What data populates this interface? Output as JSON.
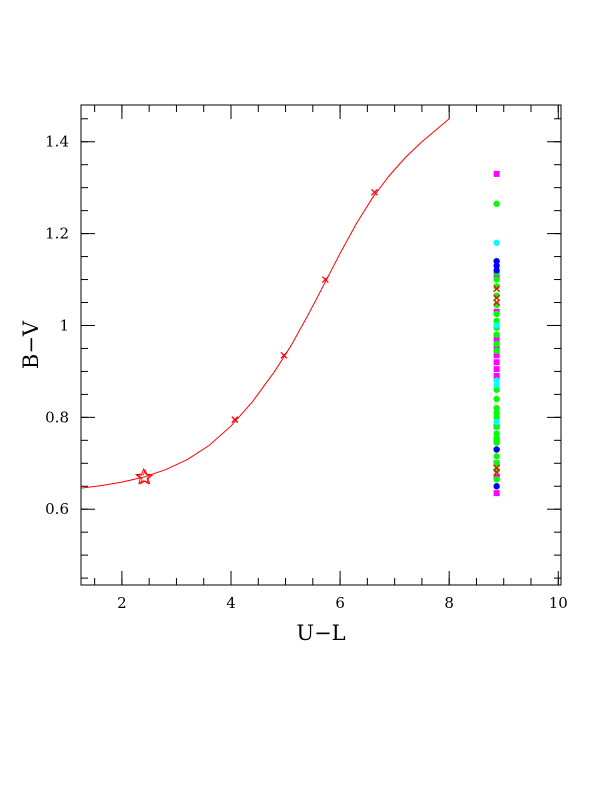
{
  "chart_data": {
    "type": "scatter",
    "xlabel": "U−L",
    "ylabel": "B−V",
    "xlim": [
      1.25,
      10.05
    ],
    "ylim": [
      0.435,
      1.48
    ],
    "x_ticks": [
      2,
      4,
      6,
      8,
      10
    ],
    "y_ticks": [
      0.6,
      0.8,
      1,
      1.2,
      1.4
    ],
    "x_tick_labels": [
      "2",
      "4",
      "6",
      "8",
      "10"
    ],
    "y_tick_labels": [
      "0.6",
      "0.8",
      "1",
      "1.2",
      "1.4"
    ],
    "x_minor_step": 0.5,
    "y_minor_step": 0.05,
    "grid": false,
    "series": [
      {
        "kind": "line",
        "color": "#ff0000",
        "x": [
          1.25,
          1.6,
          2.0,
          2.4,
          2.8,
          3.2,
          3.6,
          4.0,
          4.4,
          4.8,
          5.1,
          5.4,
          5.7,
          6.0,
          6.3,
          6.6,
          6.9,
          7.2,
          7.5,
          7.8,
          8.0
        ],
        "y": [
          0.646,
          0.651,
          0.659,
          0.67,
          0.686,
          0.708,
          0.739,
          0.781,
          0.835,
          0.9,
          0.956,
          1.02,
          1.088,
          1.157,
          1.222,
          1.279,
          1.326,
          1.366,
          1.4,
          1.43,
          1.45
        ]
      },
      {
        "kind": "cross-markers",
        "color": "#ff0000",
        "x": [
          4.07,
          4.97,
          5.73,
          6.63
        ],
        "y": [
          0.795,
          0.935,
          1.1,
          1.29
        ]
      },
      {
        "kind": "star-marker",
        "color": "#ff0000",
        "x": [
          2.4
        ],
        "y": [
          0.67
        ]
      },
      {
        "kind": "square",
        "color": "#ff00ff",
        "x": [
          8.87,
          8.87,
          8.87,
          8.87,
          8.87,
          8.87,
          8.87,
          8.87,
          8.87,
          8.87,
          8.87,
          8.87,
          8.87,
          8.87
        ],
        "y": [
          1.33,
          1.11,
          1.03,
          0.97,
          0.95,
          0.935,
          0.92,
          0.905,
          0.89,
          0.78,
          0.75,
          0.7,
          0.67,
          0.635
        ]
      },
      {
        "kind": "circle",
        "color": "#00ff00",
        "x": [
          8.87,
          8.87,
          8.87,
          8.87,
          8.87,
          8.87,
          8.87,
          8.87,
          8.87,
          8.87,
          8.87,
          8.87,
          8.87,
          8.87,
          8.87,
          8.87,
          8.87,
          8.87,
          8.87,
          8.87,
          8.87,
          8.87,
          8.87,
          8.87,
          8.87,
          8.87
        ],
        "y": [
          1.265,
          1.115,
          1.1,
          1.085,
          1.065,
          1.045,
          1.025,
          1.01,
          0.995,
          0.98,
          0.96,
          0.945,
          0.86,
          0.84,
          0.82,
          0.81,
          0.8,
          0.78,
          0.765,
          0.755,
          0.745,
          0.73,
          0.715,
          0.7,
          0.685,
          0.665
        ]
      },
      {
        "kind": "circle",
        "color": "#00ffff",
        "x": [
          8.87,
          8.87,
          8.87,
          8.87,
          8.87
        ],
        "y": [
          1.18,
          1.0,
          0.88,
          0.87,
          0.79
        ]
      },
      {
        "kind": "circle",
        "color": "#0000ff",
        "x": [
          8.87,
          8.87,
          8.87,
          8.87,
          8.87
        ],
        "y": [
          1.14,
          1.13,
          1.12,
          0.73,
          0.65
        ]
      },
      {
        "kind": "cross",
        "color": "#ff0000",
        "x": [
          8.87,
          8.87,
          8.87,
          8.87,
          8.87
        ],
        "y": [
          1.08,
          1.06,
          1.05,
          0.69,
          0.68
        ]
      }
    ]
  }
}
